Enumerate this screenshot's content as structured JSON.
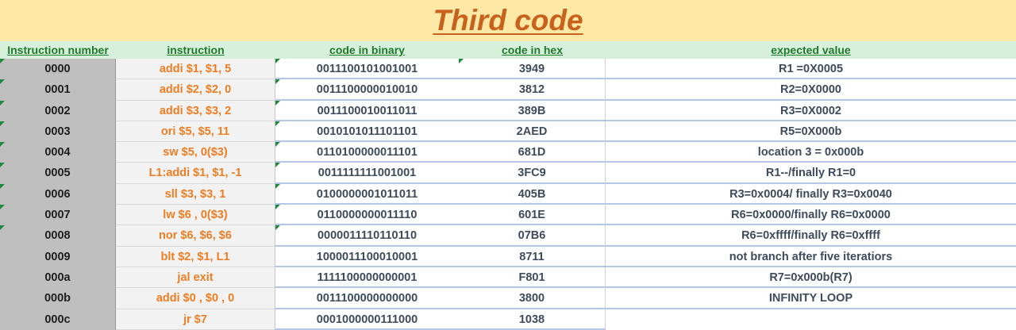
{
  "title": "Third code",
  "headers": {
    "number": "Instruction number",
    "instruction": "instruction",
    "binary": "code in binary",
    "hex": "code in hex",
    "expected": "expected value"
  },
  "rows": [
    {
      "number": "0000",
      "instruction": "addi $1, $1, 5",
      "binary": "0011100101001001",
      "hex": "3949",
      "expected": "R1 =0X0005"
    },
    {
      "number": "0001",
      "instruction": "addi $2, $2, 0",
      "binary": "0011100000010010",
      "hex": "3812",
      "expected": "R2=0X0000"
    },
    {
      "number": "0002",
      "instruction": "addi $3, $3, 2",
      "binary": "0011100010011011",
      "hex": "389B",
      "expected": "R3=0X0002"
    },
    {
      "number": "0003",
      "instruction": "ori $5, $5, 11",
      "binary": "0010101011101101",
      "hex": "2AED",
      "expected": "R5=0X000b"
    },
    {
      "number": "0004",
      "instruction": "sw $5, 0($3)",
      "binary": "0110100000011101",
      "hex": "681D",
      "expected": "location 3 = 0x000b"
    },
    {
      "number": "0005",
      "instruction": "L1:addi $1, $1, -1",
      "binary": "0011111111001001",
      "hex": "3FC9",
      "expected": "R1--/finally R1=0"
    },
    {
      "number": "0006",
      "instruction": "sll $3, $3, 1",
      "binary": "0100000001011011",
      "hex": "405B",
      "expected": "R3=0x0004/ finally R3=0x0040"
    },
    {
      "number": "0007",
      "instruction": "lw $6 , 0($3)",
      "binary": "0110000000011110",
      "hex": "601E",
      "expected": "R6=0x0000/finally R6=0x0000"
    },
    {
      "number": "0008",
      "instruction": "nor $6, $6, $6",
      "binary": "0000011110110110",
      "hex": "07B6",
      "expected": "R6=0xffff/finally R6=0xffff"
    },
    {
      "number": "0009",
      "instruction": "blt $2, $1, L1",
      "binary": "1000011100010001",
      "hex": "8711",
      "expected": "not branch after five iteratiors"
    },
    {
      "number": "000a",
      "instruction": "jal exit",
      "binary": "1111100000000001",
      "hex": "F801",
      "expected": "R7=0x000b(R7)"
    },
    {
      "number": "000b",
      "instruction": "addi $0 , $0 , 0",
      "binary": "0011100000000000",
      "hex": "3800",
      "expected": "INFINITY LOOP"
    },
    {
      "number": "000c",
      "instruction": "jr $7",
      "binary": "0001000000111000",
      "hex": "1038",
      "expected": ""
    }
  ],
  "colors": {
    "title_bg": "#fde8a6",
    "title_text": "#c8611b",
    "header_bg": "#d6f0dc",
    "header_text": "#1f7a2a",
    "instruction_text": "#ee7d22",
    "number_col_bg": "#bfbfbf"
  }
}
